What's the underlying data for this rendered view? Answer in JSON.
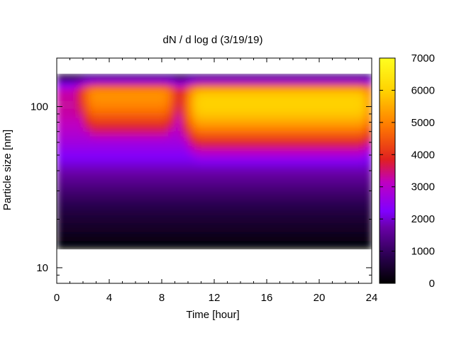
{
  "chart_data": {
    "type": "heatmap",
    "title": "dN / d log d (3/19/19)",
    "xlabel": "Time [hour]",
    "ylabel": "Particle size [nm]",
    "xlim": [
      0,
      24
    ],
    "ylim": [
      8,
      200
    ],
    "y_scale": "log",
    "x_ticks": [
      0,
      4,
      8,
      12,
      16,
      20,
      24
    ],
    "y_ticks": [
      10,
      100
    ],
    "colorbar": {
      "min": 0,
      "max": 7000,
      "ticks": [
        0,
        1000,
        2000,
        3000,
        4000,
        5000,
        6000,
        7000
      ],
      "colormap": [
        "#000000",
        "#2a0050",
        "#6a00a8",
        "#8000ff",
        "#c000c0",
        "#e02020",
        "#ff7a00",
        "#ffd000",
        "#ffff20"
      ]
    },
    "data_range_y": [
      13,
      160
    ],
    "peak_regions": [
      {
        "x_range": [
          3,
          8
        ],
        "center_size_nm": 120,
        "value": 5200
      },
      {
        "x_range": [
          11,
          23
        ],
        "center_size_nm": 105,
        "value": 6000
      }
    ]
  }
}
